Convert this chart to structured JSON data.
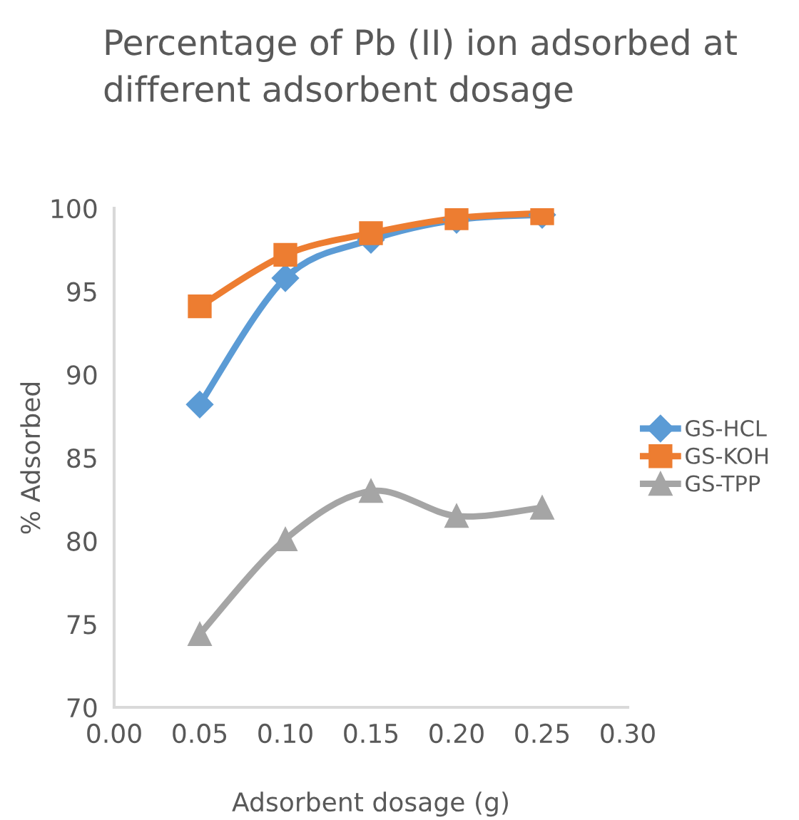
{
  "chart_data": {
    "type": "line",
    "title": "Percentage of Pb (II) ion adsorbed at different adsorbent dosage",
    "xlabel": "Adsorbent dosage (g)",
    "ylabel": "% Adsorbed",
    "x": [
      0.05,
      0.1,
      0.15,
      0.2,
      0.25
    ],
    "series": [
      {
        "name": "GS-HCL",
        "color": "#5b9bd5",
        "marker": "diamond",
        "values": [
          88.2,
          95.8,
          98.1,
          99.3,
          99.6
        ]
      },
      {
        "name": "GS-KOH",
        "color": "#ed7d31",
        "marker": "square",
        "values": [
          94.1,
          97.2,
          98.5,
          99.4,
          99.7
        ]
      },
      {
        "name": "GS-TPP",
        "color": "#a5a5a5",
        "marker": "triangle",
        "values": [
          74.4,
          80.1,
          83.0,
          81.5,
          82.0
        ]
      }
    ],
    "xlim": [
      0.0,
      0.3
    ],
    "xticks": [
      {
        "value": 0.0,
        "label": "0.00"
      },
      {
        "value": 0.05,
        "label": "0.05"
      },
      {
        "value": 0.1,
        "label": "0.10"
      },
      {
        "value": 0.15,
        "label": "0.15"
      },
      {
        "value": 0.2,
        "label": "0.20"
      },
      {
        "value": 0.25,
        "label": "0.25"
      },
      {
        "value": 0.3,
        "label": "0.30"
      }
    ],
    "ylim": [
      70,
      100
    ],
    "yticks": [
      70,
      75,
      80,
      85,
      90,
      95,
      100
    ],
    "grid": false,
    "legend": "right",
    "line_style": "solid"
  }
}
